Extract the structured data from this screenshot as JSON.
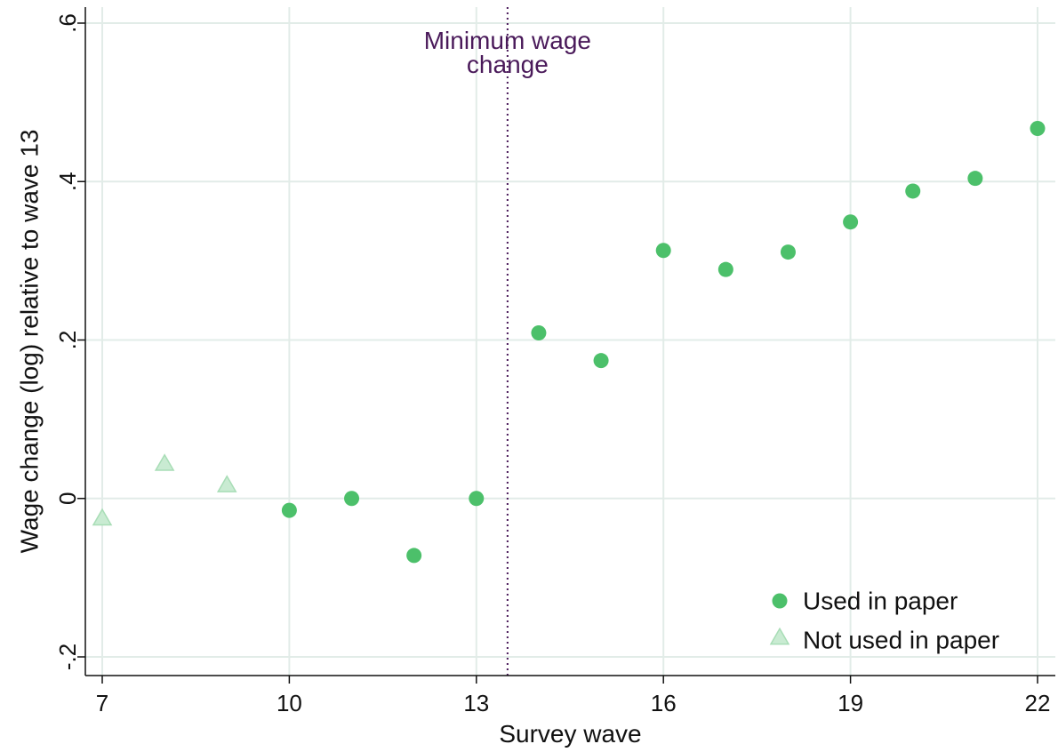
{
  "chart_data": {
    "type": "scatter",
    "xlabel": "Survey wave",
    "ylabel": "Wage change (log) relative to wave 13",
    "xlim": [
      7,
      22
    ],
    "ylim": [
      -0.2,
      0.6
    ],
    "xticks": [
      7,
      10,
      13,
      16,
      19,
      22
    ],
    "xtick_labels": [
      "7",
      "10",
      "13",
      "16",
      "19",
      "22"
    ],
    "yticks": [
      -0.2,
      0,
      0.2,
      0.4,
      0.6
    ],
    "ytick_labels": [
      "-.2",
      "0",
      ".2",
      ".4",
      ".6"
    ],
    "grid": true,
    "legend_position": "bottom-right",
    "vline": {
      "x": 13.5,
      "label_lines": [
        "Minimum wage",
        "change"
      ],
      "color": "#4a1a5a"
    },
    "series": [
      {
        "name": "Used in paper",
        "marker": "circle",
        "color": "#4cc06a",
        "points": [
          {
            "x": 10,
            "y": -0.015
          },
          {
            "x": 11,
            "y": 0.0
          },
          {
            "x": 12,
            "y": -0.072
          },
          {
            "x": 13,
            "y": 0.0
          },
          {
            "x": 14,
            "y": 0.209
          },
          {
            "x": 15,
            "y": 0.174
          },
          {
            "x": 16,
            "y": 0.313
          },
          {
            "x": 17,
            "y": 0.289
          },
          {
            "x": 18,
            "y": 0.311
          },
          {
            "x": 19,
            "y": 0.349
          },
          {
            "x": 20,
            "y": 0.388
          },
          {
            "x": 21,
            "y": 0.404
          },
          {
            "x": 22,
            "y": 0.467
          }
        ]
      },
      {
        "name": "Not used in paper",
        "marker": "triangle",
        "color": "#c9ebd2",
        "stroke": "#a8ddb6",
        "points": [
          {
            "x": 7,
            "y": -0.026
          },
          {
            "x": 8,
            "y": 0.043
          },
          {
            "x": 9,
            "y": 0.016
          }
        ]
      }
    ]
  }
}
